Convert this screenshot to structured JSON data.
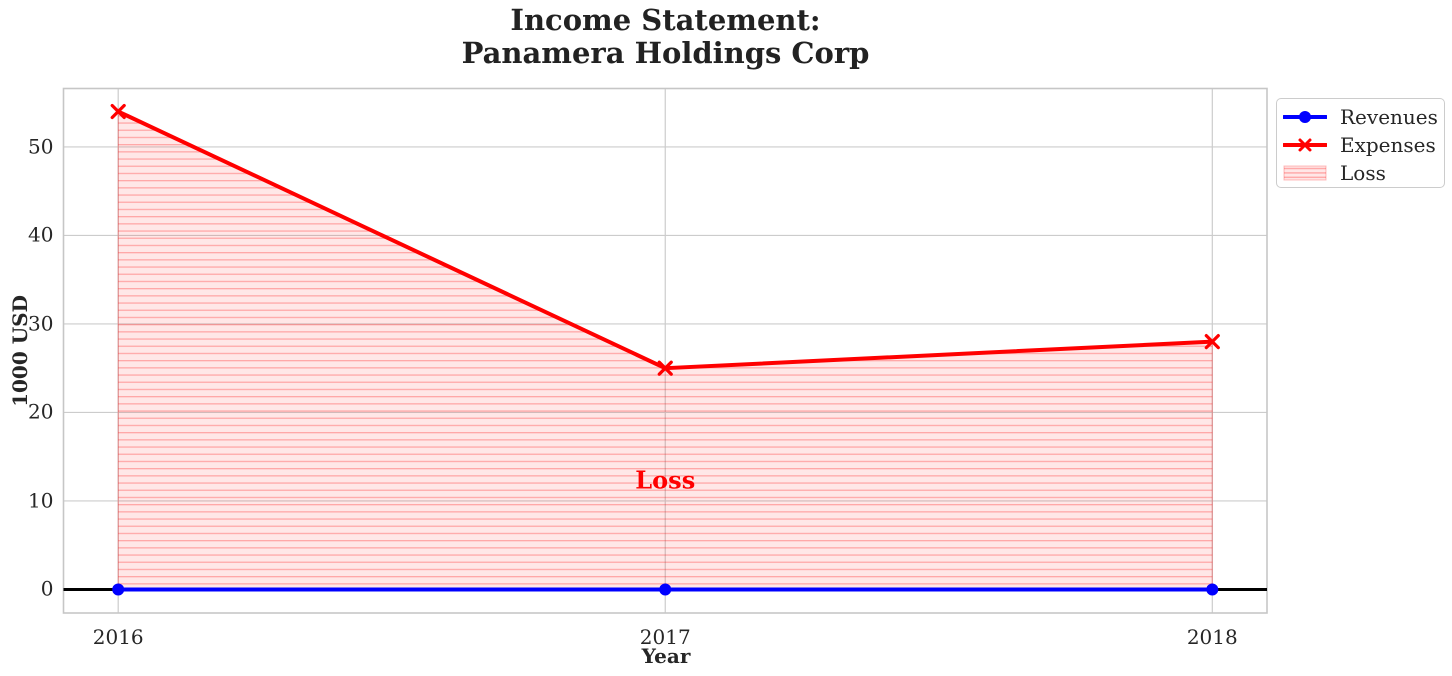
{
  "chart_data": {
    "type": "line",
    "title": "Income Statement:\nPanamera Holdings Corp",
    "xlabel": "Year",
    "ylabel": "1000 USD",
    "x": [
      2016,
      2017,
      2018
    ],
    "series": [
      {
        "name": "Revenues",
        "values": [
          0,
          0,
          0
        ],
        "color": "#0000ff",
        "marker": "circle",
        "linewidth": 4
      },
      {
        "name": "Expenses",
        "values": [
          54,
          25,
          28
        ],
        "color": "#ff0000",
        "marker": "x",
        "linewidth": 4
      }
    ],
    "fill_between": {
      "name": "Loss",
      "upper": "Expenses",
      "lower": "Revenues",
      "fill_color": "rgba(255,0,0,0.095)",
      "hatch_color": "rgba(255,0,0,0.28)",
      "edge_color": "rgba(255,0,0,0.30)",
      "hatch": "horizontal"
    },
    "annotation": {
      "text": "Loss",
      "x": 2017,
      "y": 12.4,
      "color": "#ff0000"
    },
    "xticks": {
      "values": [
        2016,
        2017,
        2018
      ],
      "labels": [
        "2016",
        "2017",
        "2018"
      ]
    },
    "yticks": {
      "values": [
        0,
        10,
        20,
        30,
        40,
        50
      ],
      "labels": [
        "0",
        "10",
        "20",
        "30",
        "40",
        "50"
      ]
    },
    "xlim": [
      2015.9,
      2018.1
    ],
    "ylim": [
      -2.66,
      56.6
    ],
    "grid": true,
    "grid_color": "#cccccc",
    "spine_color": "#c6c6c6",
    "zero_line": {
      "y": 0,
      "color": "#000000",
      "linewidth": 3
    },
    "legend": {
      "position": "outside-upper-right",
      "entries": [
        {
          "label": "Revenues",
          "handle": "line-circle",
          "color": "#0000ff"
        },
        {
          "label": "Expenses",
          "handle": "line-x",
          "color": "#ff0000"
        },
        {
          "label": "Loss",
          "handle": "patch-hatched",
          "color": "rgba(255,0,0,0.28)"
        }
      ]
    }
  }
}
